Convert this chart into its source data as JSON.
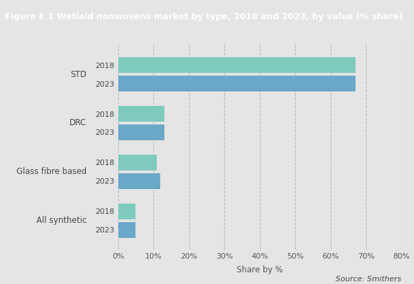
{
  "title": "Figure E.1 Wetlaid nonwovens market by type, 2018 and 2023, by value (% share)",
  "categories": [
    "STD",
    "DRC",
    "Glass fibre based",
    "All synthetic"
  ],
  "values_2018": [
    67,
    13,
    11,
    5
  ],
  "values_2023": [
    67,
    13,
    12,
    5
  ],
  "color_2018": "#7ecbbd",
  "color_2023": "#6aa8c8",
  "background_color": "#e5e5e5",
  "title_bg_color": "#1a1a1a",
  "title_text_color": "#ffffff",
  "xlabel": "Share by %",
  "xlim": [
    0,
    80
  ],
  "xticks": [
    0,
    10,
    20,
    30,
    40,
    50,
    60,
    70,
    80
  ],
  "xtick_labels": [
    "0%",
    "10%",
    "20%",
    "30%",
    "40%",
    "50%",
    "60%",
    "70%",
    "80%"
  ],
  "source_text": "Source: Smithers",
  "bar_height": 0.32,
  "title_fontsize": 9.0,
  "label_fontsize": 8.5,
  "tick_fontsize": 8.0
}
